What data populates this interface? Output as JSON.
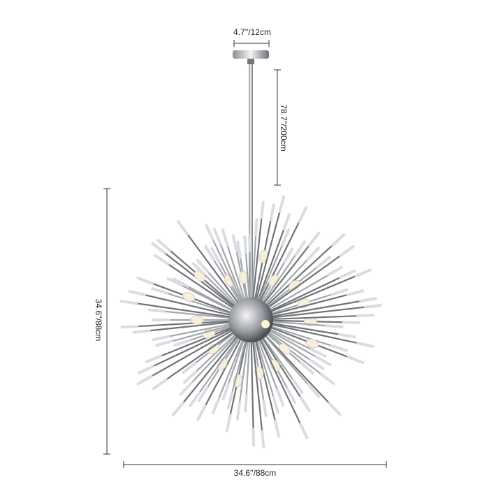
{
  "dimensions": {
    "canopy_width": "4.7''/12cm",
    "rod_length": "78.7''/200cm",
    "height": "34.6''/88cm",
    "width": "34.6''/88cm"
  }
}
